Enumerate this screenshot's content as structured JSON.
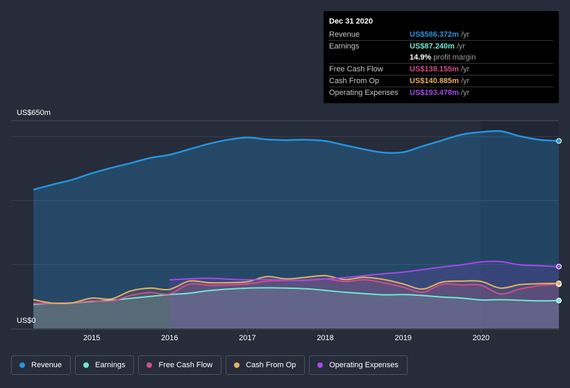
{
  "colors": {
    "revenue": "#2394df",
    "earnings": "#6ee8d3",
    "free_cash_flow": "#d14d86",
    "cash_from_op": "#e8b060",
    "operating_expenses": "#a349e8",
    "grid": "#3a4050",
    "background": "#262c39"
  },
  "tooltip": {
    "date": "Dec 31 2020",
    "rows": [
      {
        "label": "Revenue",
        "value": "US$586.372m",
        "unit": "/yr",
        "color": "#2394df"
      },
      {
        "label": "Earnings",
        "value": "US$87.240m",
        "unit": "/yr",
        "color": "#6ee8d3"
      },
      {
        "label": "",
        "value": "14.9%",
        "unit": "profit margin",
        "color": "#ffffff"
      },
      {
        "label": "Free Cash Flow",
        "value": "US$138.155m",
        "unit": "/yr",
        "color": "#d14d86"
      },
      {
        "label": "Cash From Op",
        "value": "US$140.885m",
        "unit": "/yr",
        "color": "#e8b060"
      },
      {
        "label": "Operating Expenses",
        "value": "US$193.478m",
        "unit": "/yr",
        "color": "#a349e8"
      }
    ]
  },
  "legend": [
    {
      "label": "Revenue",
      "color": "#2394df"
    },
    {
      "label": "Earnings",
      "color": "#6ee8d3"
    },
    {
      "label": "Free Cash Flow",
      "color": "#d14d86"
    },
    {
      "label": "Cash From Op",
      "color": "#e8b060"
    },
    {
      "label": "Operating Expenses",
      "color": "#a349e8"
    }
  ],
  "chart_data": {
    "type": "area",
    "title": "",
    "xlabel": "",
    "ylabel": "",
    "ylim": [
      0,
      650
    ],
    "xlim": [
      2014.25,
      2021.0
    ],
    "y_axis_labels": [
      "US$650m",
      "US$0"
    ],
    "x_ticks": [
      "2015",
      "2016",
      "2017",
      "2018",
      "2019",
      "2020"
    ],
    "x_tick_values": [
      2015,
      2016,
      2017,
      2018,
      2019,
      2020
    ],
    "series": [
      {
        "name": "Revenue",
        "key": "revenue",
        "points": [
          [
            2014.25,
            434
          ],
          [
            2014.5,
            450
          ],
          [
            2014.75,
            465
          ],
          [
            2015.0,
            485
          ],
          [
            2015.25,
            502
          ],
          [
            2015.5,
            517
          ],
          [
            2015.75,
            533
          ],
          [
            2016.0,
            543
          ],
          [
            2016.25,
            560
          ],
          [
            2016.5,
            577
          ],
          [
            2016.75,
            590
          ],
          [
            2017.0,
            597
          ],
          [
            2017.25,
            591
          ],
          [
            2017.5,
            589
          ],
          [
            2017.75,
            590
          ],
          [
            2018.0,
            586
          ],
          [
            2018.25,
            573
          ],
          [
            2018.5,
            560
          ],
          [
            2018.75,
            550
          ],
          [
            2019.0,
            551
          ],
          [
            2019.25,
            570
          ],
          [
            2019.5,
            588
          ],
          [
            2019.75,
            606
          ],
          [
            2020.0,
            614
          ],
          [
            2020.25,
            617
          ],
          [
            2020.5,
            601
          ],
          [
            2020.75,
            590
          ],
          [
            2021.0,
            586.372
          ]
        ]
      },
      {
        "name": "Earnings",
        "key": "earnings",
        "points": [
          [
            2014.25,
            75
          ],
          [
            2014.5,
            79
          ],
          [
            2014.75,
            80
          ],
          [
            2015.0,
            84
          ],
          [
            2015.25,
            88
          ],
          [
            2015.5,
            94
          ],
          [
            2015.75,
            100
          ],
          [
            2016.0,
            106
          ],
          [
            2016.25,
            110
          ],
          [
            2016.5,
            118
          ],
          [
            2016.75,
            123
          ],
          [
            2017.0,
            126
          ],
          [
            2017.25,
            127
          ],
          [
            2017.5,
            126
          ],
          [
            2017.75,
            124
          ],
          [
            2018.0,
            119
          ],
          [
            2018.25,
            113
          ],
          [
            2018.5,
            109
          ],
          [
            2018.75,
            105
          ],
          [
            2019.0,
            106
          ],
          [
            2019.25,
            103
          ],
          [
            2019.5,
            98
          ],
          [
            2019.75,
            95
          ],
          [
            2020.0,
            89
          ],
          [
            2020.25,
            90
          ],
          [
            2020.5,
            88
          ],
          [
            2020.75,
            86
          ],
          [
            2021.0,
            87.24
          ]
        ]
      },
      {
        "name": "Free Cash Flow",
        "key": "free_cash_flow",
        "points": [
          [
            2014.25,
            78
          ],
          [
            2014.5,
            79
          ],
          [
            2014.75,
            80
          ],
          [
            2015.0,
            86
          ],
          [
            2015.25,
            85
          ],
          [
            2015.5,
            103
          ],
          [
            2015.75,
            112
          ],
          [
            2016.0,
            108
          ],
          [
            2016.25,
            138
          ],
          [
            2016.5,
            135
          ],
          [
            2016.75,
            136
          ],
          [
            2017.0,
            139
          ],
          [
            2017.25,
            148
          ],
          [
            2017.5,
            150
          ],
          [
            2017.75,
            151
          ],
          [
            2018.0,
            155
          ],
          [
            2018.25,
            147
          ],
          [
            2018.5,
            152
          ],
          [
            2018.75,
            143
          ],
          [
            2019.0,
            129
          ],
          [
            2019.25,
            113
          ],
          [
            2019.5,
            138
          ],
          [
            2019.75,
            136
          ],
          [
            2020.0,
            135
          ],
          [
            2020.25,
            108
          ],
          [
            2020.5,
            123
          ],
          [
            2020.75,
            134
          ],
          [
            2021.0,
            138.155
          ]
        ]
      },
      {
        "name": "Cash From Op",
        "key": "cash_from_op",
        "points": [
          [
            2014.25,
            90
          ],
          [
            2014.5,
            79
          ],
          [
            2014.75,
            80
          ],
          [
            2015.0,
            95
          ],
          [
            2015.25,
            92
          ],
          [
            2015.5,
            117
          ],
          [
            2015.75,
            126
          ],
          [
            2016.0,
            122
          ],
          [
            2016.25,
            148
          ],
          [
            2016.5,
            143
          ],
          [
            2016.75,
            143
          ],
          [
            2017.0,
            146
          ],
          [
            2017.25,
            162
          ],
          [
            2017.5,
            155
          ],
          [
            2017.75,
            160
          ],
          [
            2018.0,
            165
          ],
          [
            2018.25,
            153
          ],
          [
            2018.5,
            160
          ],
          [
            2018.75,
            153
          ],
          [
            2019.0,
            139
          ],
          [
            2019.25,
            123
          ],
          [
            2019.5,
            145
          ],
          [
            2019.75,
            148
          ],
          [
            2020.0,
            147
          ],
          [
            2020.25,
            126
          ],
          [
            2020.5,
            137
          ],
          [
            2020.75,
            140
          ],
          [
            2021.0,
            140.885
          ]
        ]
      },
      {
        "name": "Operating Expenses",
        "key": "operating_expenses",
        "points": [
          [
            2016.0,
            152
          ],
          [
            2016.25,
            155
          ],
          [
            2016.5,
            157
          ],
          [
            2016.75,
            154
          ],
          [
            2017.0,
            152
          ],
          [
            2017.25,
            153
          ],
          [
            2017.5,
            151
          ],
          [
            2017.75,
            150
          ],
          [
            2018.0,
            155
          ],
          [
            2018.25,
            159
          ],
          [
            2018.5,
            165
          ],
          [
            2018.75,
            171
          ],
          [
            2019.0,
            176
          ],
          [
            2019.25,
            184
          ],
          [
            2019.5,
            192
          ],
          [
            2019.75,
            199
          ],
          [
            2020.0,
            208
          ],
          [
            2020.25,
            209
          ],
          [
            2020.5,
            199
          ],
          [
            2020.75,
            196
          ],
          [
            2021.0,
            193.478
          ]
        ]
      }
    ]
  }
}
